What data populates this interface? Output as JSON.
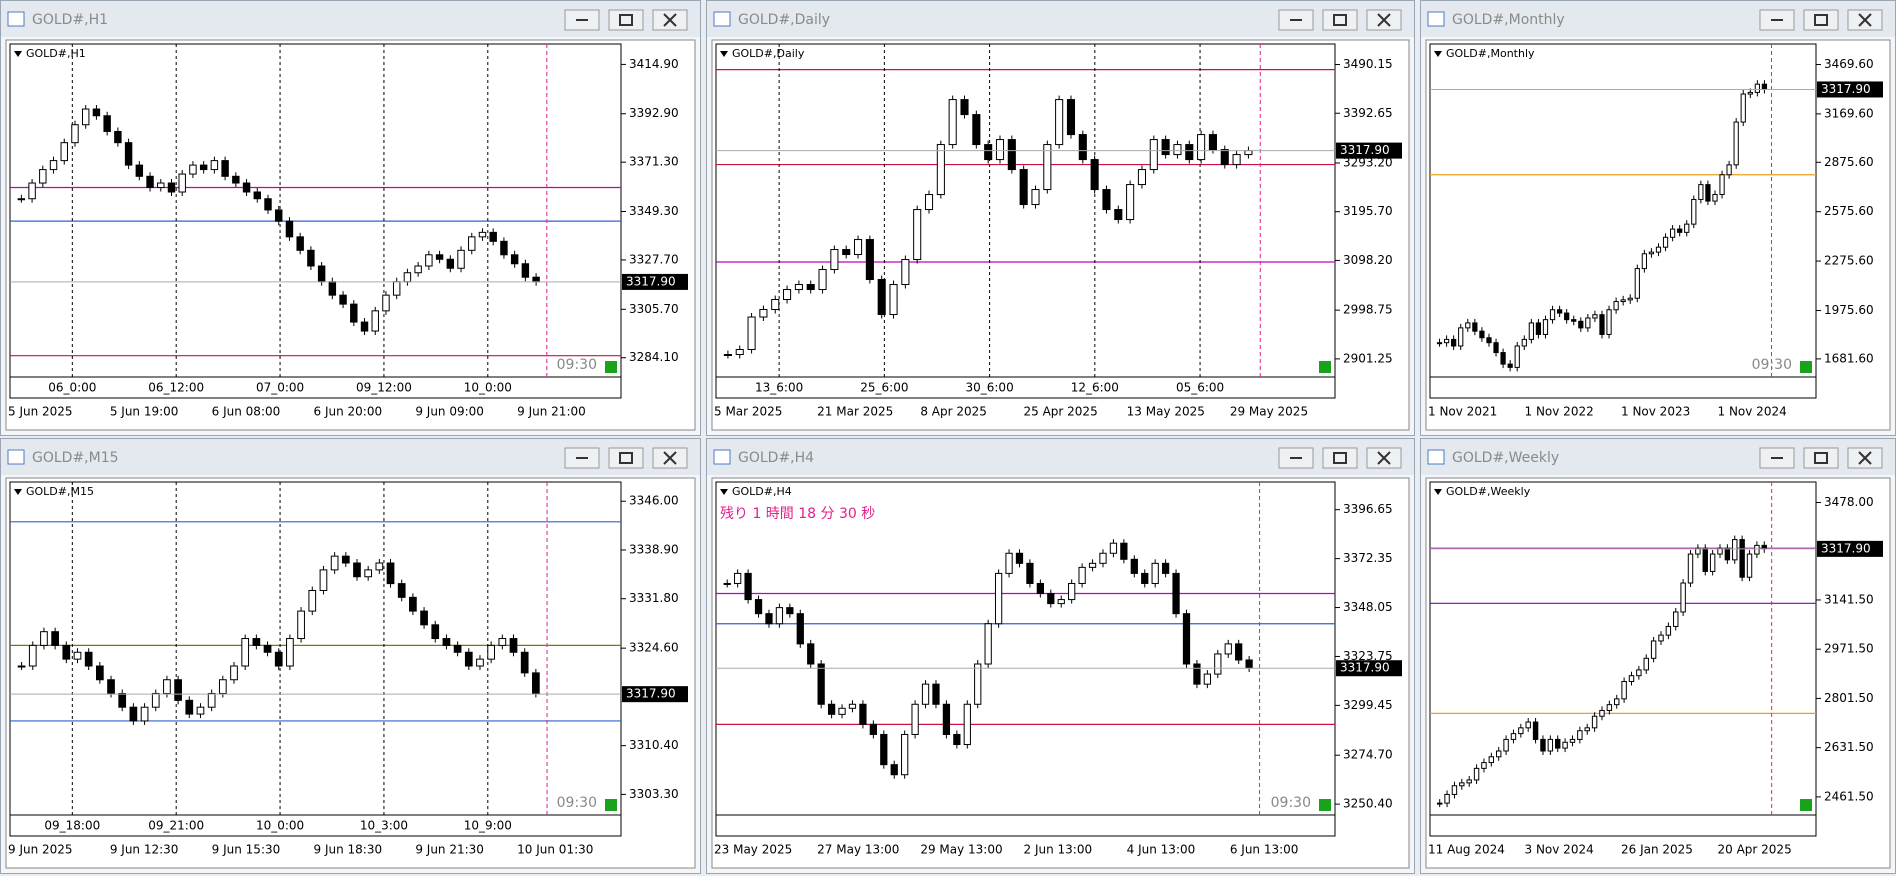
{
  "windows": [
    {
      "title": "GOLD#,H1",
      "label": "GOLD#,H1",
      "yticks": [
        {
          "value": 3414.9,
          "label": "3414.90"
        },
        {
          "value": 3392.9,
          "label": "3392.90"
        },
        {
          "value": 3371.3,
          "label": "3371.30"
        },
        {
          "value": 3349.3,
          "label": "3349.30"
        },
        {
          "value": 3327.7,
          "label": "3327.70"
        },
        {
          "value": 3305.7,
          "label": "3305.70"
        },
        {
          "value": 3284.1,
          "label": "3284.10"
        }
      ],
      "ylim": [
        3275.5,
        3424
      ],
      "price": {
        "value": 3317.9,
        "label": "3317.90"
      },
      "vlines": [
        "06_0:00",
        "06_12:00",
        "07_0:00",
        "09_12:00",
        "10_0:00"
      ],
      "dates": [
        "5 Jun 2025",
        "5 Jun 19:00",
        "6 Jun 08:00",
        "6 Jun 20:00",
        "9 Jun 09:00",
        "9 Jun 21:00"
      ],
      "timer": "09:30",
      "levels": [
        {
          "value": 3360,
          "color": "#c000c0"
        },
        {
          "value": 3345,
          "color": "#3060d0"
        },
        {
          "value": 3285,
          "color": "#d01040"
        }
      ],
      "closes": [
        3355,
        3362,
        3368,
        3372,
        3380,
        3388,
        3395,
        3392,
        3385,
        3380,
        3370,
        3365,
        3360,
        3362,
        3358,
        3366,
        3370,
        3368,
        3372,
        3365,
        3362,
        3358,
        3355,
        3350,
        3345,
        3338,
        3332,
        3325,
        3318,
        3312,
        3308,
        3300,
        3296,
        3305,
        3312,
        3318,
        3322,
        3325,
        3330,
        3328,
        3324,
        3332,
        3338,
        3340,
        3336,
        3330,
        3326,
        3320,
        3318
      ]
    },
    {
      "title": "GOLD#,Daily",
      "label": "GOLD#,Daily",
      "yticks": [
        {
          "value": 3490.15,
          "label": "3490.15"
        },
        {
          "value": 3392.65,
          "label": "3392.65"
        },
        {
          "value": 3293.2,
          "label": "3293.20"
        },
        {
          "value": 3195.7,
          "label": "3195.70"
        },
        {
          "value": 3098.2,
          "label": "3098.20"
        },
        {
          "value": 2998.75,
          "label": "2998.75"
        },
        {
          "value": 2901.25,
          "label": "2901.25"
        }
      ],
      "ylim": [
        2865,
        3531.2
      ],
      "price": {
        "value": 3317.9,
        "label": "3317.90"
      },
      "vlines": [
        "13_6:00",
        "25_6:00",
        "30_6:00",
        "12_6:00",
        "05_6:00"
      ],
      "dates": [
        "5 Mar 2025",
        "21 Mar 2025",
        "8 Apr 2025",
        "25 Apr 2025",
        "13 May 2025",
        "29 May 2025"
      ],
      "levels": [
        {
          "value": 3480,
          "color": "#d01040"
        },
        {
          "value": 3290,
          "color": "#d01040"
        },
        {
          "value": 3095,
          "color": "#c000c0"
        }
      ],
      "closes": [
        2910,
        2920,
        2985,
        3000,
        3020,
        3040,
        3050,
        3040,
        3080,
        3120,
        3110,
        3140,
        3060,
        2990,
        3050,
        3100,
        3200,
        3230,
        3330,
        3420,
        3390,
        3330,
        3300,
        3340,
        3280,
        3210,
        3240,
        3330,
        3420,
        3350,
        3300,
        3240,
        3200,
        3180,
        3250,
        3280,
        3340,
        3310,
        3330,
        3300,
        3350,
        3320,
        3290,
        3310,
        3318
      ]
    },
    {
      "title": "GOLD#,Monthly",
      "label": "GOLD#,Monthly",
      "yticks": [
        {
          "value": 3469.6,
          "label": "3469.60"
        },
        {
          "value": 3169.6,
          "label": "3169.60"
        },
        {
          "value": 2875.6,
          "label": "2875.60"
        },
        {
          "value": 2575.6,
          "label": "2575.60"
        },
        {
          "value": 2275.6,
          "label": "2275.60"
        },
        {
          "value": 1975.6,
          "label": "1975.60"
        },
        {
          "value": 1681.6,
          "label": "1681.60"
        }
      ],
      "ylim": [
        1571.6,
        3594
      ],
      "price": {
        "value": 3317.9,
        "label": "3317.90"
      },
      "vlines": [],
      "dates": [
        "1 Nov 2021",
        "1 Nov 2022",
        "1 Nov 2023",
        "1 Nov 2024"
      ],
      "timer": "09:30",
      "levels": [
        {
          "value": 2800,
          "color": "#e8a020"
        }
      ],
      "closes": [
        1780,
        1800,
        1760,
        1870,
        1900,
        1850,
        1810,
        1780,
        1720,
        1650,
        1630,
        1760,
        1800,
        1900,
        1830,
        1920,
        1980,
        1960,
        1920,
        1910,
        1870,
        1930,
        1950,
        1830,
        1980,
        2030,
        2040,
        2050,
        2230,
        2320,
        2330,
        2360,
        2420,
        2470,
        2450,
        2500,
        2650,
        2740,
        2640,
        2680,
        2800,
        2860,
        3120,
        3290,
        3300,
        3350,
        3318
      ]
    },
    {
      "title": "GOLD#,M15",
      "label": "GOLD#,M15",
      "yticks": [
        {
          "value": 3346,
          "label": "3346.00"
        },
        {
          "value": 3338.9,
          "label": "3338.90"
        },
        {
          "value": 3331.8,
          "label": "3331.80"
        },
        {
          "value": 3324.6,
          "label": "3324.60"
        },
        {
          "value": 3310.4,
          "label": "3310.40"
        },
        {
          "value": 3303.3,
          "label": "3303.30"
        }
      ],
      "ylim": [
        3300.3,
        3348.8
      ],
      "price": {
        "value": 3317.9,
        "label": "3317.90"
      },
      "vlines": [
        "09_18:00",
        "09_21:00",
        "10_0:00",
        "10_3:00",
        "10_9:00"
      ],
      "dates": [
        "9 Jun 2025",
        "9 Jun 12:30",
        "9 Jun 15:30",
        "9 Jun 18:30",
        "9 Jun 21:30",
        "10 Jun 01:30"
      ],
      "timer": "09:30",
      "levels": [
        {
          "value": 3343,
          "color": "#3060d0"
        },
        {
          "value": 3325,
          "color": "#708000"
        },
        {
          "value": 3314,
          "color": "#3060d0"
        }
      ],
      "closes": [
        3322,
        3325,
        3327,
        3325,
        3323,
        3324,
        3322,
        3320,
        3318,
        3316,
        3314,
        3316,
        3318,
        3320,
        3317,
        3315,
        3316,
        3318,
        3320,
        3322,
        3326,
        3325,
        3324,
        3322,
        3326,
        3330,
        3333,
        3336,
        3338,
        3337,
        3335,
        3336,
        3337,
        3334,
        3332,
        3330,
        3328,
        3326,
        3325,
        3324,
        3322,
        3323,
        3325,
        3326,
        3324,
        3321,
        3318
      ]
    },
    {
      "title": "GOLD#,H4",
      "label": "GOLD#,H4",
      "countdown": "残り 1 時間 18 分 30 秒",
      "yticks": [
        {
          "value": 3396.65,
          "label": "3396.65"
        },
        {
          "value": 3372.35,
          "label": "3372.35"
        },
        {
          "value": 3348.05,
          "label": "3348.05"
        },
        {
          "value": 3323.75,
          "label": "3323.75"
        },
        {
          "value": 3299.45,
          "label": "3299.45"
        },
        {
          "value": 3274.7,
          "label": "3274.70"
        },
        {
          "value": 3250.4,
          "label": "3250.40"
        }
      ],
      "ylim": [
        3245,
        3410.4
      ],
      "price": {
        "value": 3317.9,
        "label": "3317.90"
      },
      "vlines": [],
      "dates": [
        "23 May 2025",
        "27 May 13:00",
        "29 May 13:00",
        "2 Jun 13:00",
        "4 Jun 13:00",
        "6 Jun 13:00"
      ],
      "timer": "09:30",
      "levels": [
        {
          "value": 3355,
          "color": "#c000c0"
        },
        {
          "value": 3340,
          "color": "#3060d0"
        },
        {
          "value": 3290,
          "color": "#d01040"
        }
      ],
      "closes": [
        3360,
        3365,
        3352,
        3345,
        3340,
        3348,
        3345,
        3330,
        3320,
        3300,
        3295,
        3298,
        3300,
        3290,
        3285,
        3270,
        3265,
        3285,
        3300,
        3310,
        3300,
        3285,
        3280,
        3300,
        3320,
        3340,
        3365,
        3375,
        3370,
        3360,
        3355,
        3350,
        3352,
        3360,
        3368,
        3370,
        3375,
        3380,
        3372,
        3365,
        3360,
        3370,
        3365,
        3345,
        3320,
        3310,
        3315,
        3325,
        3330,
        3322,
        3318
      ]
    },
    {
      "title": "GOLD#,Weekly",
      "label": "GOLD#,Weekly",
      "yticks": [
        {
          "value": 3478,
          "label": "3478.00"
        },
        {
          "value": 3141.5,
          "label": "3141.50"
        },
        {
          "value": 2971.5,
          "label": "2971.50"
        },
        {
          "value": 2801.5,
          "label": "2801.50"
        },
        {
          "value": 2631.5,
          "label": "2631.50"
        },
        {
          "value": 2461.5,
          "label": "2461.50"
        }
      ],
      "ylim": [
        2399,
        3548.8
      ],
      "price": {
        "value": 3317.9,
        "label": "3317.90"
      },
      "vlines": [],
      "dates": [
        "11 Aug 2024",
        "3 Nov 2024",
        "26 Jan 2025",
        "20 Apr 2025"
      ],
      "levels": [
        {
          "value": 3320,
          "color": "#c000c0"
        },
        {
          "value": 3130,
          "color": "#8000c0"
        },
        {
          "value": 2750,
          "color": "#e8a020"
        }
      ],
      "closes": [
        2440,
        2470,
        2500,
        2510,
        2520,
        2560,
        2580,
        2600,
        2620,
        2660,
        2680,
        2700,
        2720,
        2660,
        2620,
        2660,
        2630,
        2650,
        2660,
        2690,
        2700,
        2740,
        2760,
        2780,
        2800,
        2860,
        2880,
        2900,
        2940,
        3000,
        3020,
        3050,
        3100,
        3200,
        3300,
        3320,
        3240,
        3300,
        3320,
        3280,
        3350,
        3220,
        3300,
        3330,
        3318
      ]
    }
  ]
}
